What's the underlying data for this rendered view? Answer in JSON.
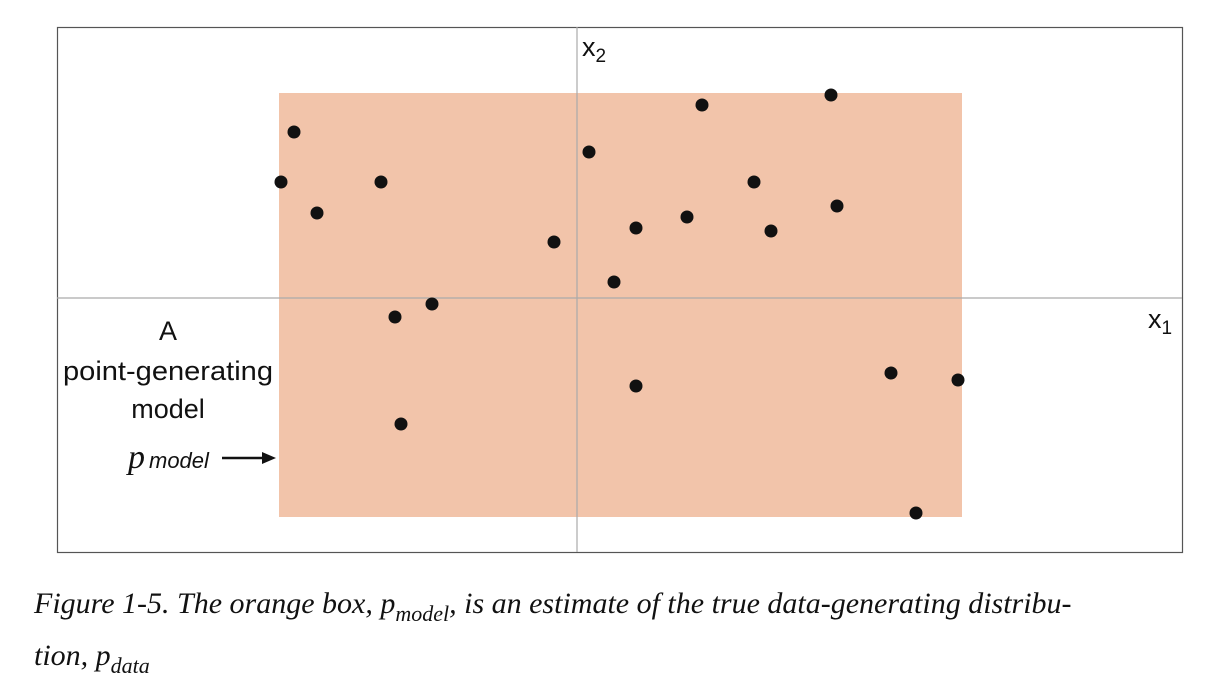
{
  "figure": {
    "x2_label": {
      "base": "x",
      "sub": "2"
    },
    "x1_label": {
      "base": "x",
      "sub": "1"
    },
    "box_label": [
      "A",
      "point-generating",
      "model"
    ],
    "box_symbol": {
      "base": "p",
      "sub": "model"
    },
    "caption": {
      "prefix": "Figure 1-5. The orange box, ",
      "symbol1": {
        "base": "p",
        "sub": "model"
      },
      "middle": ", is an estimate of the true data-generating distribu-",
      "line2": "tion, ",
      "symbol2": {
        "base": "p",
        "sub": "data"
      }
    }
  }
}
